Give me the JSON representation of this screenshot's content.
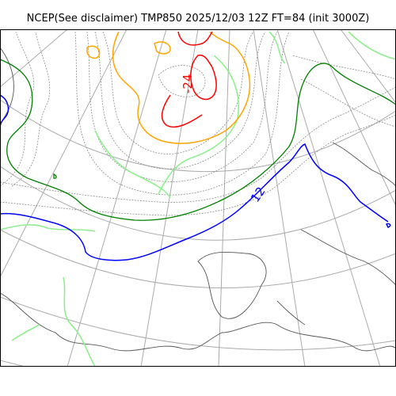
{
  "title": "NCEP(See disclaimer) TMP850 2025/12/03 12Z FT=84 (init 3000Z)",
  "contour_labels": [
    {
      "text": "-24",
      "color": "#ff0000"
    },
    {
      "text": "12",
      "color": "#0000ff"
    }
  ],
  "colors": {
    "coastline": "#555555",
    "graticule": "#aaaaaa",
    "isotherm_thin": "#8a8a8a",
    "green_dark": "#008000",
    "green_light": "#90ee90",
    "orange": "#ffa500",
    "red": "#ff0000",
    "blue": "#0000ff"
  }
}
